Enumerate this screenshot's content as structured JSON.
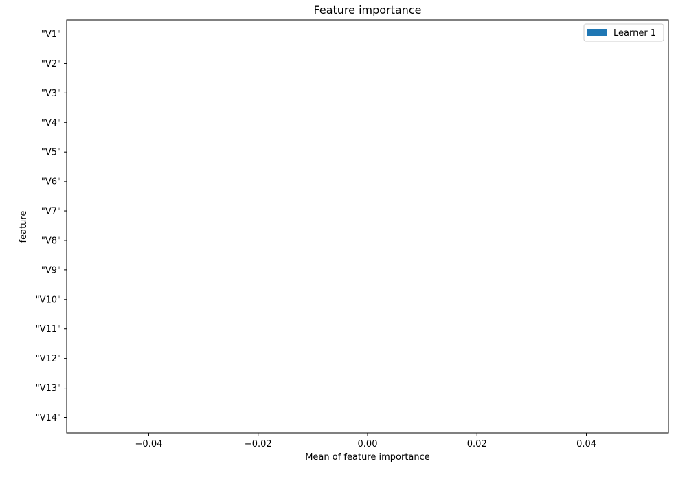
{
  "chart_data": {
    "type": "bar",
    "orientation": "horizontal",
    "title": "Feature importance",
    "xlabel": "Mean of feature importance",
    "ylabel": "feature",
    "categories": [
      "\"V1\"",
      "\"V2\"",
      "\"V3\"",
      "\"V4\"",
      "\"V5\"",
      "\"V6\"",
      "\"V7\"",
      "\"V8\"",
      "\"V9\"",
      "\"V10\"",
      "\"V11\"",
      "\"V12\"",
      "\"V13\"",
      "\"V14\""
    ],
    "series": [
      {
        "name": "Learner 1",
        "values": [
          0,
          0,
          0,
          0,
          0,
          0,
          0,
          0,
          0,
          0,
          0,
          0,
          0,
          0
        ],
        "color": "#1f77b4"
      }
    ],
    "xlim": [
      -0.055,
      0.055
    ],
    "xticks": [
      -0.04,
      -0.02,
      0.0,
      0.02,
      0.04
    ],
    "xtick_labels": [
      "−0.04",
      "−0.02",
      "0.00",
      "0.02",
      "0.04"
    ],
    "grid": false,
    "legend_position": "top-right"
  }
}
